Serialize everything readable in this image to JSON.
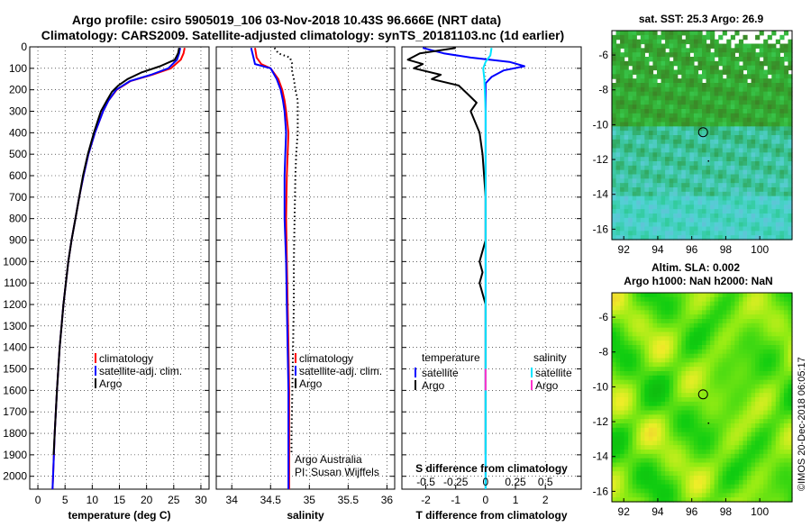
{
  "header": {
    "title_line1": "Argo profile: csiro 5905019_106 03-Nov-2018 10.43S 96.666E (NRT data)",
    "title_line2": "Climatology: CARS2009. Satellite-adjusted climatology: synTS_20181103.nc (1d earlier)"
  },
  "colors": {
    "climatology": "#ff0000",
    "satellite": "#0000ff",
    "argo": "#000000",
    "sat_salinity": "#00e5ff",
    "argo_salinity": "#ff33cc"
  },
  "depth_axis": {
    "ticks": [
      0,
      100,
      200,
      300,
      400,
      500,
      600,
      700,
      800,
      900,
      1000,
      1100,
      1200,
      1300,
      1400,
      1500,
      1600,
      1700,
      1800,
      1900,
      2000
    ],
    "range": [
      0,
      2060
    ]
  },
  "chart_data": [
    {
      "type": "line",
      "id": "temperature",
      "xlabel": "temperature (deg C)",
      "xlim": [
        -1.5,
        31.5
      ],
      "xticks": [
        0,
        5,
        10,
        15,
        20,
        25,
        30
      ],
      "legend": [
        "climatology",
        "satellite-adj. clim.",
        "Argo"
      ],
      "series": [
        {
          "name": "climatology",
          "color": "#ff0000",
          "depth": [
            5,
            30,
            60,
            100,
            130,
            160,
            200,
            250,
            300,
            400,
            500,
            600,
            700,
            800,
            900,
            1000,
            1200,
            1400,
            1600,
            1800,
            2000,
            2060
          ],
          "values": [
            27.0,
            26.8,
            26.3,
            24.5,
            21.0,
            17.0,
            14.5,
            13.0,
            12.0,
            10.5,
            9.3,
            8.4,
            7.6,
            6.9,
            6.2,
            5.6,
            4.7,
            4.0,
            3.5,
            3.1,
            2.8,
            2.7
          ]
        },
        {
          "name": "satellite-adj. clim.",
          "color": "#0000ff",
          "depth": [
            5,
            30,
            60,
            100,
            130,
            160,
            200,
            250,
            300,
            400,
            500,
            600,
            700,
            800,
            900,
            1000,
            1200,
            1400,
            1600,
            1800,
            2000,
            2060
          ],
          "values": [
            26.2,
            26.0,
            25.6,
            24.0,
            20.8,
            16.9,
            14.4,
            13.0,
            12.0,
            10.5,
            9.3,
            8.4,
            7.6,
            6.9,
            6.2,
            5.6,
            4.7,
            4.0,
            3.5,
            3.1,
            2.8,
            2.7
          ]
        },
        {
          "name": "Argo",
          "color": "#000000",
          "depth": [
            5,
            30,
            60,
            90,
            120,
            150,
            180,
            210,
            250,
            300,
            400,
            500,
            600,
            700,
            800,
            900,
            1000,
            1200,
            1400,
            1600,
            1800,
            1900
          ],
          "values": [
            26.0,
            25.8,
            25.2,
            22.5,
            19.0,
            16.5,
            14.8,
            13.6,
            12.7,
            11.6,
            10.3,
            9.2,
            8.3,
            7.6,
            6.9,
            6.2,
            5.6,
            4.7,
            4.0,
            3.5,
            3.1,
            2.9
          ]
        }
      ]
    },
    {
      "type": "line",
      "id": "salinity",
      "xlabel": "salinity",
      "xlim": [
        33.8,
        36.1
      ],
      "xticks": [
        34,
        34.5,
        35,
        35.5,
        36
      ],
      "legend": [
        "climatology",
        "satellite-adj. clim.",
        "Argo"
      ],
      "series": [
        {
          "name": "climatology",
          "color": "#ff0000",
          "depth": [
            5,
            50,
            80,
            100,
            150,
            200,
            250,
            300,
            400,
            500,
            600,
            800,
            1000,
            1200,
            1400,
            1600,
            1800,
            2000,
            2060
          ],
          "values": [
            34.3,
            34.32,
            34.38,
            34.5,
            34.6,
            34.65,
            34.68,
            34.7,
            34.73,
            34.72,
            34.71,
            34.7,
            34.71,
            34.72,
            34.73,
            34.74,
            34.74,
            34.74,
            34.74
          ]
        },
        {
          "name": "satellite-adj. clim.",
          "color": "#0000ff",
          "depth": [
            5,
            50,
            80,
            100,
            150,
            200,
            250,
            300,
            400,
            500,
            600,
            800,
            1000,
            1200,
            1400,
            1600,
            1800,
            2000,
            2060
          ],
          "values": [
            34.25,
            34.28,
            34.3,
            34.5,
            34.58,
            34.63,
            34.66,
            34.68,
            34.7,
            34.69,
            34.68,
            34.68,
            34.7,
            34.71,
            34.72,
            34.73,
            34.73,
            34.73,
            34.73
          ]
        },
        {
          "name": "Argo",
          "color": "#000000",
          "depth": [
            5,
            30,
            50,
            80,
            100,
            150,
            200,
            250,
            300,
            400,
            500,
            600,
            800,
            1000,
            1200,
            1400,
            1600,
            1800,
            1900
          ],
          "values": [
            34.55,
            34.6,
            34.75,
            34.78,
            34.77,
            34.8,
            34.82,
            34.85,
            34.85,
            34.85,
            34.83,
            34.82,
            34.81,
            34.8,
            34.8,
            34.79,
            34.78,
            34.77,
            34.77
          ]
        }
      ],
      "annotations": [
        "Argo Australia",
        "PI: Susan Wijffels"
      ]
    },
    {
      "type": "line",
      "id": "difference",
      "xlabel": "T difference from climatology",
      "xlabel2": "S difference from climatology",
      "xlim": [
        -2.8,
        3.2
      ],
      "xticks": [
        -2,
        -1,
        0,
        1,
        2
      ],
      "xticks_top": [
        -0.5,
        -0.25,
        0,
        0.25,
        0.5
      ],
      "legend_left_title": "temperature",
      "legend_right_title": "salinity",
      "legend_left": [
        "satellite",
        "Argo"
      ],
      "legend_right": [
        "satellite",
        "Argo"
      ],
      "series": [
        {
          "name": "T satellite",
          "color": "#0000ff",
          "depth": [
            5,
            30,
            50,
            70,
            90,
            110,
            140,
            170,
            200,
            300,
            500,
            800,
            1000,
            1500,
            2000,
            2060
          ],
          "values": [
            -2.1,
            -1.4,
            -0.5,
            0.8,
            1.3,
            0.6,
            0.2,
            0.0,
            0.0,
            0.0,
            0.0,
            0.0,
            0.0,
            0.0,
            0.0,
            0.0
          ]
        },
        {
          "name": "T Argo",
          "color": "#000000",
          "depth": [
            5,
            30,
            60,
            80,
            100,
            130,
            150,
            180,
            220,
            260,
            300,
            400,
            500,
            700,
            900,
            1000,
            1050,
            1100,
            1200,
            1300,
            1500,
            1700,
            1900
          ],
          "values": [
            -1.0,
            -2.2,
            -2.6,
            -2.1,
            -2.4,
            -1.5,
            -1.8,
            -0.9,
            -0.6,
            -0.3,
            -0.5,
            -0.2,
            -0.1,
            0.0,
            0.0,
            -0.2,
            -0.1,
            -0.2,
            0.0,
            0.0,
            0.0,
            0.0,
            0.0
          ]
        },
        {
          "name": "S satellite",
          "color": "#00e5ff",
          "depth": [
            5,
            40,
            70,
            100,
            150,
            300,
            600,
            1000,
            1500,
            2000,
            2060
          ],
          "values": [
            0.05,
            0.04,
            0.0,
            -0.02,
            -0.01,
            0.0,
            0.0,
            0.0,
            0.0,
            0.0,
            0.0
          ]
        },
        {
          "name": "S Argo",
          "color": "#ff33cc",
          "depth": [
            1500,
            1600
          ],
          "values": [
            0.0,
            0.0
          ]
        }
      ]
    },
    {
      "type": "heatmap",
      "id": "sst",
      "title": "sat. SST: 25.3 Argo: 26.9",
      "xticks": [
        92,
        94,
        96,
        98,
        100
      ],
      "yticks": [
        -6,
        -8,
        -10,
        -12,
        -14,
        -16
      ],
      "xlim": [
        91.3,
        101.9
      ],
      "ylim": [
        -16.6,
        -4.6
      ],
      "marker": {
        "lon": 96.666,
        "lat": -10.43
      }
    },
    {
      "type": "heatmap",
      "id": "sla",
      "title": "Altim. SLA: 0.002",
      "subtitle": "Argo h1000: NaN h2000: NaN",
      "xticks": [
        92,
        94,
        96,
        98,
        100
      ],
      "yticks": [
        -6,
        -8,
        -10,
        -12,
        -14,
        -16
      ],
      "xlim": [
        91.3,
        101.9
      ],
      "ylim": [
        -16.6,
        -4.6
      ],
      "marker": {
        "lon": 96.666,
        "lat": -10.43
      }
    }
  ],
  "credit": "©IMOS 20-Dec-2018 06:05:17"
}
